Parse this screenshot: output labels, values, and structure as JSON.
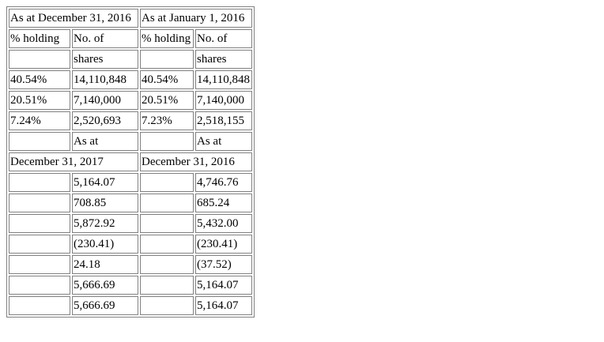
{
  "header": {
    "period_2016_dec": "As at December 31, 2016",
    "period_2016_jan": "As at January 1, 2016",
    "pct_holding": "% holding",
    "no_of": "No. of",
    "shares": "shares"
  },
  "holdings": [
    {
      "pct_dec": "40.54%",
      "shares_dec": "14,110,848",
      "pct_jan": "40.54%",
      "shares_jan": "14,110,848"
    },
    {
      "pct_dec": "20.51%",
      "shares_dec": "7,140,000",
      "pct_jan": "20.51%",
      "shares_jan": "7,140,000"
    },
    {
      "pct_dec": "7.24%",
      "shares_dec": "2,520,693",
      "pct_jan": "7.23%",
      "shares_jan": "2,518,155"
    }
  ],
  "second_header": {
    "as_at_left": "As at",
    "as_at_right": "As at",
    "date_left": "December 31, 2017",
    "date_right": "December 31, 2016"
  },
  "amounts": [
    {
      "left": "5,164.07",
      "right": "4,746.76"
    },
    {
      "left": "708.85",
      "right": "685.24"
    },
    {
      "left": "5,872.92",
      "right": "5,432.00"
    },
    {
      "left": "(230.41)",
      "right": "(230.41)"
    },
    {
      "left": "24.18",
      "right": "(37.52)"
    },
    {
      "left": "5,666.69",
      "right": "5,164.07"
    },
    {
      "left": "5,666.69",
      "right": "5,164.07"
    }
  ]
}
